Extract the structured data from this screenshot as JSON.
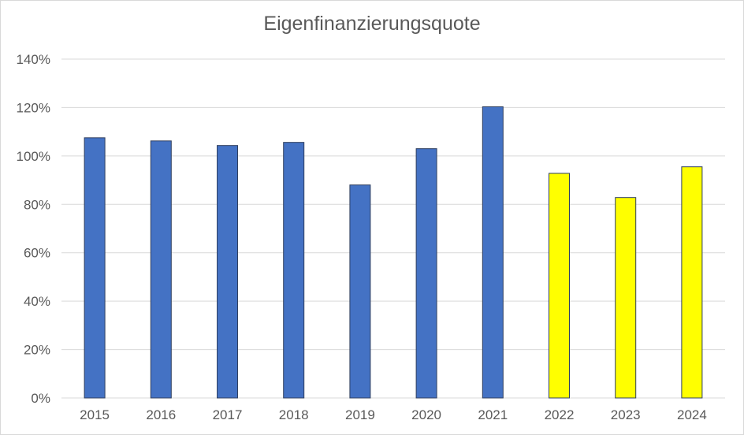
{
  "chart_data": {
    "type": "bar",
    "title": "Eigenfinanzierungsquote",
    "xlabel": "",
    "ylabel": "",
    "categories": [
      "2015",
      "2016",
      "2017",
      "2018",
      "2019",
      "2020",
      "2021",
      "2022",
      "2023",
      "2024"
    ],
    "values": [
      107.5,
      106.2,
      104.3,
      105.6,
      88.0,
      103.0,
      120.3,
      92.8,
      82.8,
      95.5
    ],
    "value_unit": "%",
    "ylim": [
      0,
      140
    ],
    "yticks": [
      0,
      20,
      40,
      60,
      80,
      100,
      120,
      140
    ],
    "ytick_labels": [
      "0%",
      "20%",
      "40%",
      "60%",
      "80%",
      "100%",
      "120%",
      "140%"
    ],
    "grid": true,
    "legend": "none",
    "bar_colors": [
      "#4472c4",
      "#4472c4",
      "#4472c4",
      "#4472c4",
      "#4472c4",
      "#4472c4",
      "#4472c4",
      "#ffff00",
      "#ffff00",
      "#ffff00"
    ],
    "bar_edge_color": "#2f3f5f",
    "gridline_color": "#d9d9d9",
    "text_color": "#595959"
  }
}
